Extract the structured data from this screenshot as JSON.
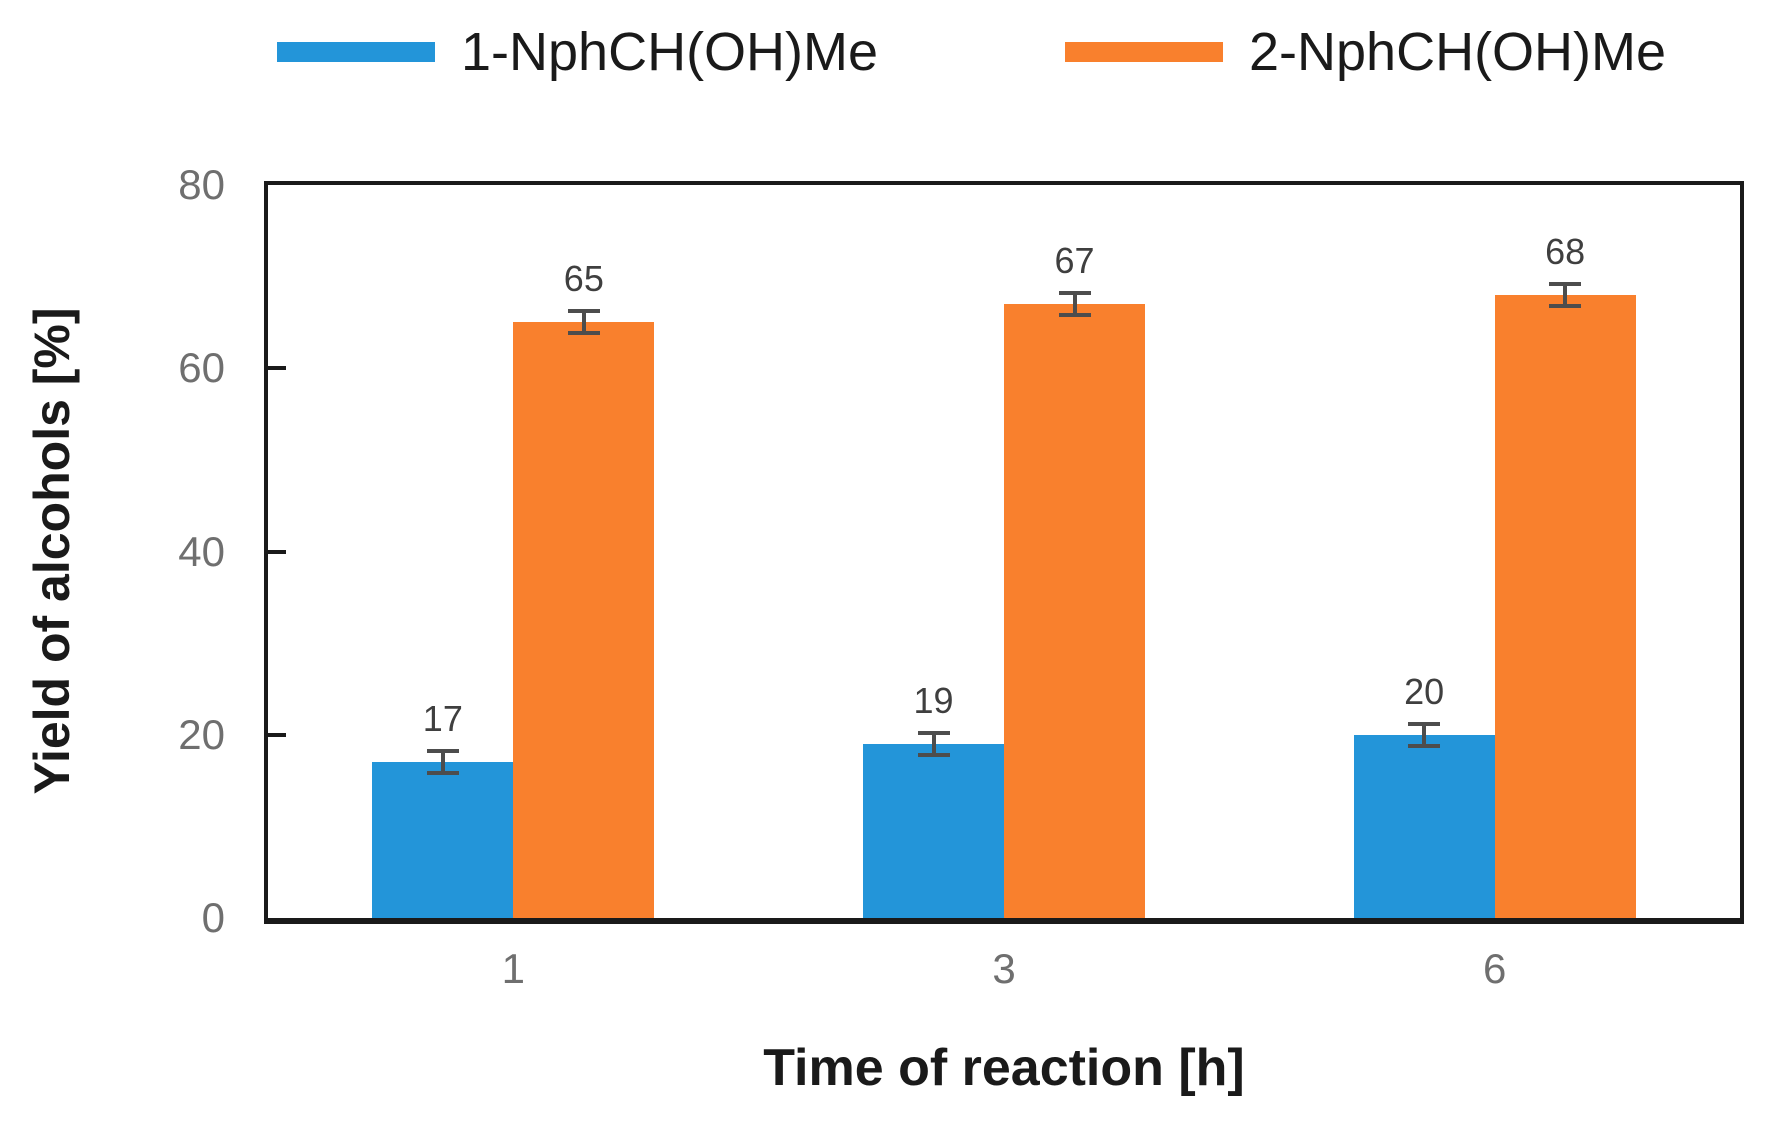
{
  "legend": {
    "items": [
      {
        "label": "1-NphCH(OH)Me",
        "color": "#2395d9"
      },
      {
        "label": "2-NphCH(OH)Me",
        "color": "#f9802d"
      }
    ]
  },
  "chart_data": {
    "type": "bar",
    "title": "",
    "categories": [
      "1",
      "3",
      "6"
    ],
    "series": [
      {
        "name": "1-NphCH(OH)Me",
        "color": "#2395d9",
        "values": [
          17,
          19,
          20
        ],
        "error": [
          1.2,
          1.2,
          1.2
        ]
      },
      {
        "name": "2-NphCH(OH)Me",
        "color": "#f9802d",
        "values": [
          65,
          67,
          68
        ],
        "error": [
          1.2,
          1.2,
          1.2
        ]
      }
    ],
    "xlabel": "Time of reaction [h]",
    "ylabel": "Yield of alcohols [%]",
    "ylim": [
      0,
      80
    ],
    "yticks": [
      0,
      20,
      40,
      60,
      80
    ],
    "grid": false,
    "legend_position": "top",
    "data_labels": true,
    "error_bars": true
  },
  "colors": {
    "axis": "#1a1a1a",
    "tick_label": "#6f6f6f",
    "data_label": "#3f3f3f",
    "error_bar": "#4d4d4d",
    "background": "#ffffff"
  }
}
